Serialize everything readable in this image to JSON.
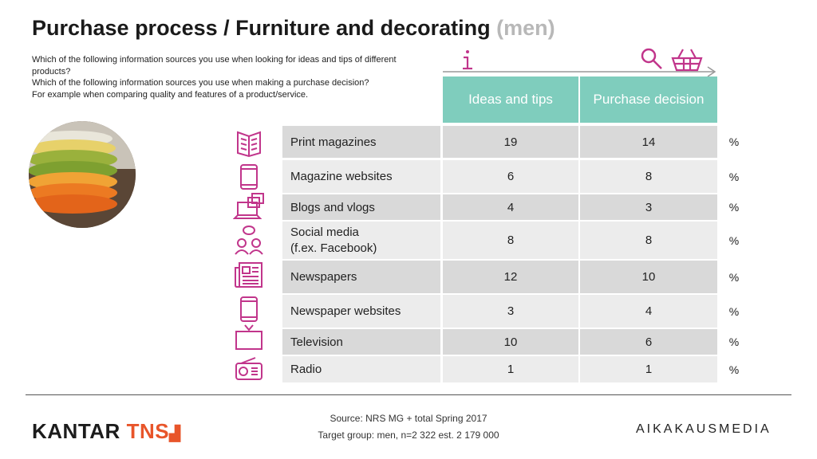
{
  "title": {
    "main": "Purchase process / Furniture and decorating",
    "sub": "(men)"
  },
  "questions": [
    "Which of the following information sources you use when looking for ideas and tips of different products?",
    "Which of the following information sources you use when making a purchase decision?",
    "For example when comparing quality and features of a product/service."
  ],
  "columns": {
    "ideas": "Ideas and tips",
    "decision": "Purchase decision"
  },
  "rows": [
    {
      "label": "Print magazines",
      "ideas": "19",
      "decision": "14",
      "unit": "%"
    },
    {
      "label": "Magazine websites",
      "ideas": "6",
      "decision": "8",
      "unit": "%"
    },
    {
      "label": "Blogs and vlogs",
      "ideas": "4",
      "decision": "3",
      "unit": "%"
    },
    {
      "label": "Social media\n(f.ex. Facebook)",
      "ideas": "8",
      "decision": "8",
      "unit": "%"
    },
    {
      "label": "Newspapers",
      "ideas": "12",
      "decision": "10",
      "unit": "%"
    },
    {
      "label": "Newspaper websites",
      "ideas": "3",
      "decision": "4",
      "unit": "%"
    },
    {
      "label": "Television",
      "ideas": "10",
      "decision": "6",
      "unit": "%"
    },
    {
      "label": "Radio",
      "ideas": "1",
      "decision": "1",
      "unit": "%"
    }
  ],
  "icons": [
    "magazine-icon",
    "tablet-icon",
    "laptop-blog-icon",
    "social-people-icon",
    "newspaper-icon",
    "tablet-news-icon",
    "television-icon",
    "radio-icon"
  ],
  "source": {
    "line1": "Source: NRS MG + total Spring 2017",
    "line2": "Target group: men, n=2 322 est. 2 179 000"
  },
  "logos": {
    "kantar": "KANTAR",
    "tns": "TNS",
    "aikakausmedia": "AIKAKAUSMEDIA"
  },
  "colors": {
    "accent": "#c1358b",
    "header": "#7fcdbd",
    "row_dark": "#d9d9d9",
    "row_light": "#ececec",
    "tns_orange": "#e8552a"
  }
}
